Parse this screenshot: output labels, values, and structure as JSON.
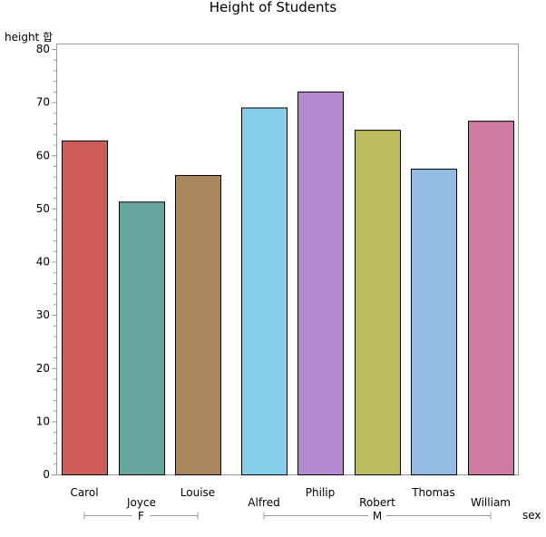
{
  "chart_data": {
    "type": "bar",
    "title": "Height of Students",
    "ylabel": "height 합",
    "xlabel": "sex",
    "ylim": [
      0,
      80
    ],
    "yticks": [
      0,
      10,
      20,
      30,
      40,
      50,
      60,
      70,
      80
    ],
    "grid": false,
    "groups": [
      {
        "label": "F",
        "categories": [
          "Carol",
          "Joyce",
          "Louise"
        ]
      },
      {
        "label": "M",
        "categories": [
          "Alfred",
          "Philip",
          "Robert",
          "Thomas",
          "William"
        ]
      }
    ],
    "categories": [
      "Carol",
      "Joyce",
      "Louise",
      "Alfred",
      "Philip",
      "Robert",
      "Thomas",
      "William"
    ],
    "values": [
      62.8,
      51.3,
      56.3,
      69.0,
      72.0,
      64.8,
      57.5,
      66.5
    ],
    "colors": [
      "#d05b5b",
      "#66a5a0",
      "#a9865b",
      "#86cfeb",
      "#b689d0",
      "#bbbd5e",
      "#94bbe1",
      "#cf7a9f"
    ]
  }
}
